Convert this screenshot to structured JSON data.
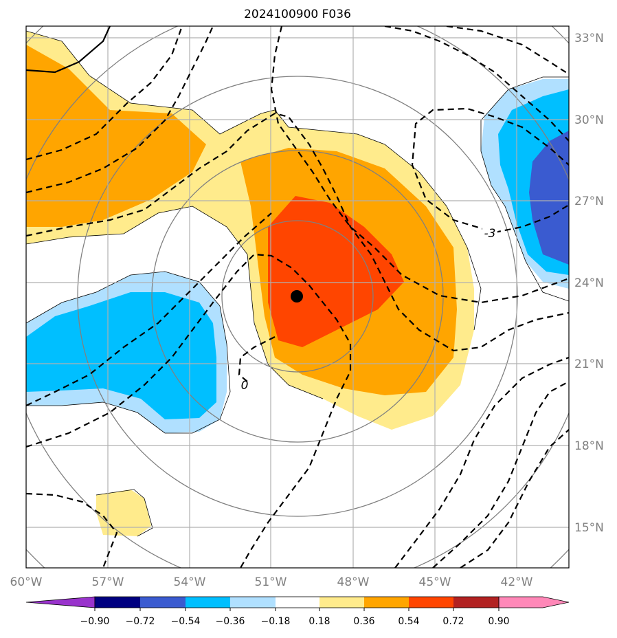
{
  "title": "2024100900 F036",
  "map": {
    "lon_range": [
      -60,
      -40
    ],
    "lat_range": [
      13.5,
      33.5
    ],
    "lat_ticks": [
      "33°N",
      "30°N",
      "27°N",
      "24°N",
      "21°N",
      "18°N",
      "15°N"
    ],
    "lon_ticks": [
      "60°W",
      "57°W",
      "54°W",
      "51°W",
      "48°W",
      "45°W",
      "42°W"
    ],
    "storm_center": {
      "lon": -50.9,
      "lat": 23.5,
      "marker": "filled-black-circle"
    },
    "contour_labels": [
      "-3",
      "0"
    ],
    "grid": true,
    "contour_style": "dashed-black",
    "range_rings": "gray-concentric-circles"
  },
  "colorbar": {
    "labels": [
      "−0.90",
      "−0.72",
      "−0.54",
      "−0.36",
      "−0.18",
      "0.18",
      "0.36",
      "0.54",
      "0.72",
      "0.90"
    ],
    "colors": [
      "#9933cc",
      "#000080",
      "#3a5bd0",
      "#00bfff",
      "#b0e0ff",
      "#ffffff",
      "#ffeb8c",
      "#ffa500",
      "#ff4500",
      "#b22222",
      "#ff88b8"
    ]
  }
}
